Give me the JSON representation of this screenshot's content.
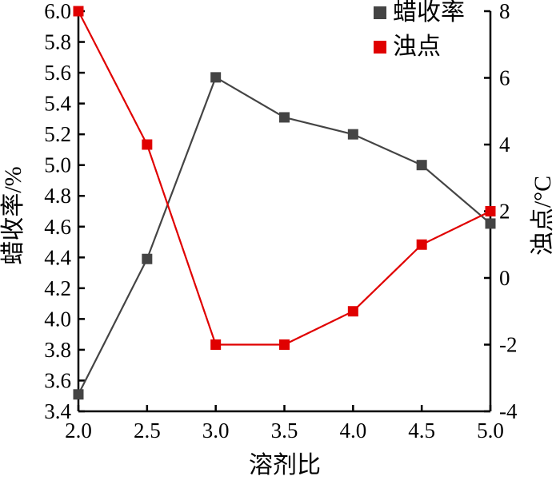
{
  "chart_data": {
    "type": "line",
    "x_ticks": [
      "2.0",
      "2.5",
      "3.0",
      "3.5",
      "4.0",
      "4.5",
      "5.0"
    ],
    "xlim": [
      2.0,
      5.0
    ],
    "xlabel": "溶剂比",
    "y_left": {
      "label": "蜡收率/%",
      "lim": [
        3.4,
        6.0
      ],
      "ticks": [
        "3.4",
        "3.6",
        "3.8",
        "4.0",
        "4.2",
        "4.4",
        "4.6",
        "4.8",
        "5.0",
        "5.2",
        "5.4",
        "5.6",
        "5.8",
        "6.0"
      ]
    },
    "y_right": {
      "label": "浊点/°C",
      "lim": [
        -4,
        8
      ],
      "ticks": [
        "-4",
        "-2",
        "0",
        "2",
        "4",
        "6",
        "8"
      ]
    },
    "series": [
      {
        "name": "蜡收率",
        "axis": "left",
        "color": "#444444",
        "marker": "square",
        "x": [
          2.0,
          2.5,
          3.0,
          3.5,
          4.0,
          4.5,
          5.0
        ],
        "y": [
          3.51,
          4.39,
          5.57,
          5.31,
          5.2,
          5.0,
          4.62
        ]
      },
      {
        "name": "浊点",
        "axis": "right",
        "color": "#e00000",
        "marker": "square",
        "x": [
          2.0,
          2.5,
          3.0,
          3.5,
          4.0,
          4.5,
          5.0
        ],
        "y": [
          8,
          4,
          -2,
          -2,
          -1,
          1,
          2
        ]
      }
    ],
    "legend_position": "top-right",
    "grid": false
  }
}
